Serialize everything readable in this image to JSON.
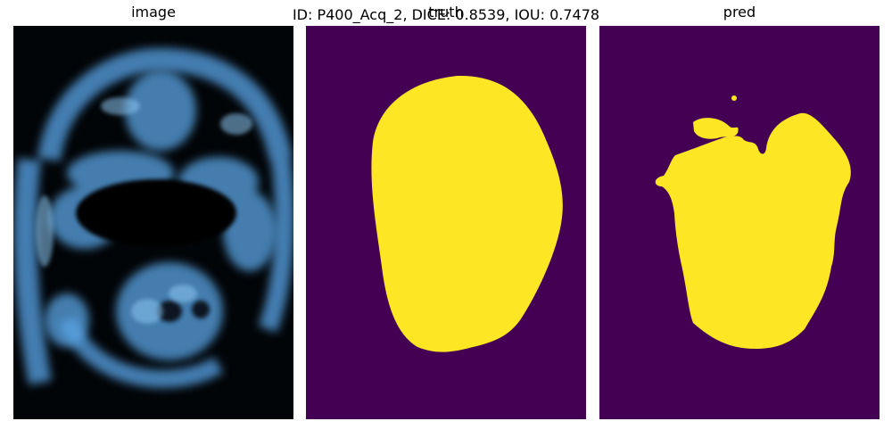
{
  "figure": {
    "suptitle": "ID: P400_Acq_2, DICE: 0.8539, IOU: 0.7478",
    "panels": {
      "image": {
        "title": "image"
      },
      "truth": {
        "title": "truth"
      },
      "pred": {
        "title": "pred"
      }
    }
  },
  "colors": {
    "background": "#ffffff",
    "image_background": "#020508",
    "ultrasound_blue": "#5aa6e6",
    "mask_background": "#440154",
    "mask_foreground": "#fde725"
  }
}
